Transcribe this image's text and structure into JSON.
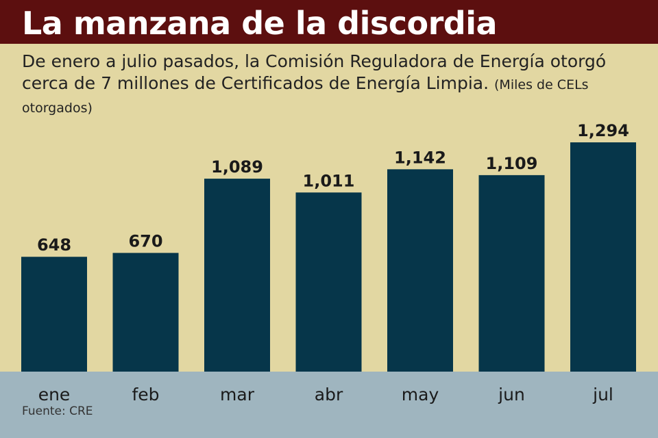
{
  "header": {
    "title": "La manzana de la discordia"
  },
  "subtitle": {
    "text": "De enero a julio pasados, la Comisión Reguladora de Energía otorgó cerca de 7 millones de Certificados de Energía Limpia.",
    "unit_note": "(Miles de CELs otorgados)"
  },
  "footer": {
    "source": "Fuente: CRE"
  },
  "colors": {
    "bar": "#06364a",
    "background": "#e2d7a2",
    "title_bar": "#5c0f0f",
    "bottom_band": "#9fb5bf",
    "text": "#1a1a1a"
  },
  "chart_data": {
    "type": "bar",
    "categories": [
      "ene",
      "feb",
      "mar",
      "abr",
      "may",
      "jun",
      "jul"
    ],
    "values": [
      648,
      670,
      1089,
      1011,
      1142,
      1109,
      1294
    ],
    "value_labels": [
      "648",
      "670",
      "1,089",
      "1,011",
      "1,142",
      "1,109",
      "1,294"
    ],
    "title": "La manzana de la discordia",
    "xlabel": "",
    "ylabel": "",
    "ylim": [
      0,
      1294
    ],
    "grid": false,
    "legend": "none"
  }
}
